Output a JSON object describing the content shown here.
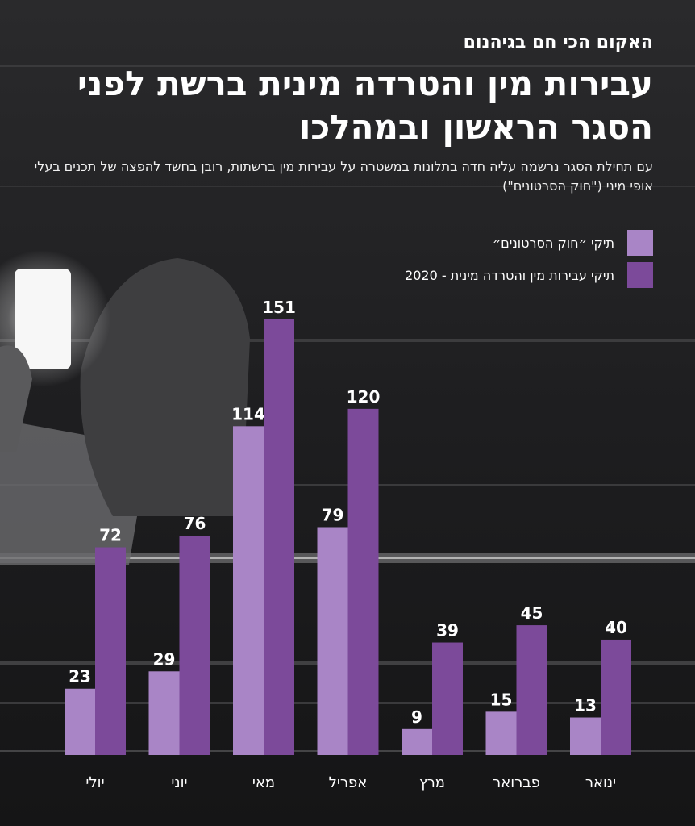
{
  "kicker": "האקום הכי חם בגיהנום",
  "title": "עבירות מין והטרדה מינית ברשת לפני הסגר הראשון ובמהלכו",
  "subtitle": "עם תחילת הסגר נרשמה עליה חדה בתלונות במשטרה על עבירות מין ברשתות, רובן בחשד להפצה של תכנים בעלי אופי מיני (\"חוק הסרטונים\")",
  "colors": {
    "series_light": "#a985c6",
    "series_dark": "#7c4a9a"
  },
  "chart_data": {
    "type": "bar",
    "categories": [
      "ינואר",
      "פברואר",
      "מרץ",
      "אפריל",
      "מאי",
      "יוני",
      "יולי"
    ],
    "series": [
      {
        "name": "תיקי ״חוק הסרטונים״",
        "values": [
          13,
          15,
          9,
          79,
          114,
          29,
          23
        ]
      },
      {
        "name": "תיקי עבירות מין והטרדה מינית - 2020",
        "values": [
          40,
          45,
          39,
          120,
          151,
          76,
          72
        ]
      }
    ],
    "ylim": [
      0,
      151
    ],
    "grid": false,
    "legend": "top-right"
  }
}
